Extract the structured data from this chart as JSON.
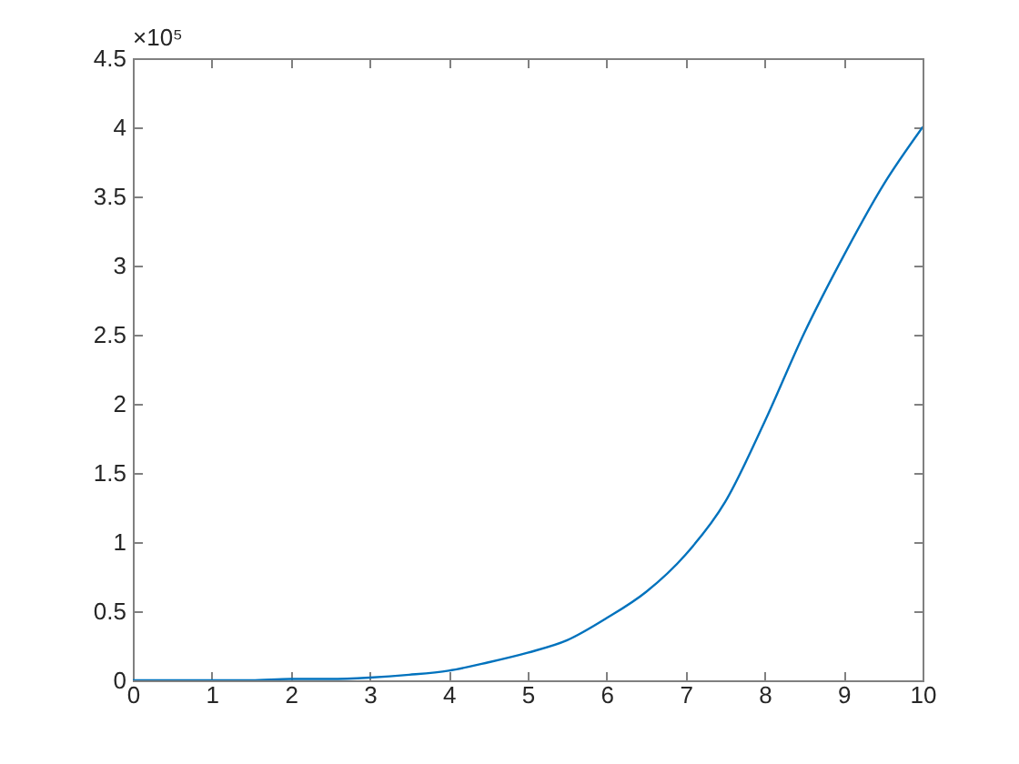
{
  "chart_data": {
    "type": "line",
    "x": [
      0,
      0.5,
      1,
      1.5,
      2,
      2.5,
      3,
      3.5,
      4,
      4.5,
      5,
      5.5,
      6,
      6.5,
      7,
      7.5,
      8,
      8.5,
      9,
      9.5,
      10
    ],
    "values": [
      0,
      0,
      0,
      0,
      0.01,
      0.01,
      0.02,
      0.04,
      0.07,
      0.13,
      0.2,
      0.29,
      0.45,
      0.64,
      0.91,
      1.29,
      1.87,
      2.51,
      3.07,
      3.58,
      4
    ],
    "color": "#0072bd",
    "xlim": [
      0,
      10
    ],
    "xticks": [
      0,
      1,
      2,
      3,
      4,
      5,
      6,
      7,
      8,
      9,
      10
    ],
    "ylim": [
      0,
      4.5
    ],
    "yticks": [
      0,
      0.5,
      1,
      1.5,
      2,
      2.5,
      3,
      3.5,
      4,
      4.5
    ],
    "annotations": [
      "×10⁵"
    ]
  }
}
